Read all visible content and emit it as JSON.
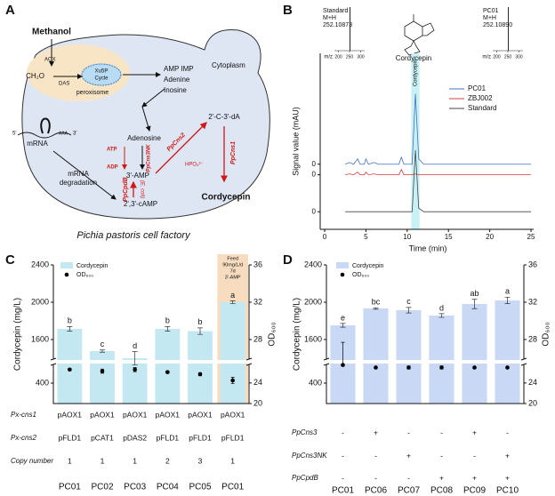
{
  "panel_labels": [
    "A",
    "B",
    "C",
    "D"
  ],
  "diagram": {
    "title": "Pichia pastoris cell factory",
    "labels": [
      "Methanol",
      "AOX",
      "CH₂O",
      "DAS",
      "Xu5P",
      "Cycle",
      "peroxisome",
      "AMP IMP",
      "Adenine",
      "Inosine",
      "Cytoplasm",
      "Adenosine",
      "ATP",
      "ADP",
      "PpCns3NK",
      "PpCns2",
      "HPO₄²⁻",
      "2'-C-3'-dA",
      "PpCns1",
      "3'-AMP",
      "5'",
      "AAA",
      "3'",
      "mRNA",
      "mRNA",
      "degradation",
      "PpCpdB",
      "(E. coli)",
      "2',3'-cAMP",
      "Cordycepin"
    ]
  },
  "chart_data": [
    {
      "type": "line",
      "xlabel": "Time (min)",
      "ylabel": "Signal value (mAU)",
      "xlim": [
        0,
        25
      ],
      "xticks": [
        0,
        5,
        10,
        15,
        20,
        25
      ],
      "highlight": {
        "label": "Cordycepin",
        "x": [
          10.5,
          11.5
        ],
        "color": "#c8f1f6"
      },
      "structure_label": "Cordycepin",
      "legend": "upper right",
      "x": [
        2.5,
        3,
        3.5,
        4,
        4.3,
        4.8,
        5,
        5.3,
        6,
        6.5,
        9,
        9.3,
        9.6,
        10.6,
        11,
        11.4,
        12,
        25
      ],
      "series": [
        {
          "name": "PC01",
          "color": "#3f6fc4",
          "ylim": [
            -37,
            63
          ],
          "yticks": [
            0
          ],
          "values": [
            0,
            1,
            0,
            3,
            0,
            0,
            3,
            0,
            1,
            0,
            0,
            4,
            0,
            0,
            40,
            3,
            0,
            0
          ]
        },
        {
          "name": "ZBJ002",
          "color": "#d43c3c",
          "ylim": [
            -31,
            69
          ],
          "yticks": [
            0
          ],
          "values": [
            0,
            0.5,
            0,
            1.5,
            0,
            0,
            1.5,
            0,
            0.5,
            0,
            0,
            3,
            0,
            0,
            0.5,
            0,
            0,
            0
          ]
        },
        {
          "name": "Standard",
          "color": "#444444",
          "ylim": [
            -10,
            90
          ],
          "yticks": [
            0
          ],
          "values": [
            0,
            0,
            0,
            0,
            0,
            0,
            0,
            0,
            0,
            0,
            0,
            0,
            0,
            0,
            35,
            2,
            0,
            0
          ]
        }
      ]
    },
    {
      "type": "spectrum",
      "title": "Standard",
      "annotation": "M+H",
      "xlabel": "m/z",
      "xlim": [
        190,
        310
      ],
      "xticks": [
        200,
        250,
        300
      ],
      "ylim": [
        0,
        1
      ],
      "x": [
        252.10873
      ],
      "x_labels": [
        "252.10873"
      ],
      "values": [
        1
      ]
    },
    {
      "type": "spectrum",
      "title": "PC01",
      "annotation": "M+H",
      "xlabel": "m/z",
      "xlim": [
        190,
        310
      ],
      "xticks": [
        200,
        250,
        300
      ],
      "ylim": [
        0,
        1
      ],
      "x": [
        252.1089
      ],
      "x_labels": [
        "252.10890"
      ],
      "values": [
        1
      ]
    },
    {
      "type": "bar",
      "ylabel": "Cordycepin (mg/L)",
      "y2label": "OD₆₀₀",
      "ylim": [
        0,
        2400
      ],
      "ybreak": [
        765,
        1390
      ],
      "yticks": [
        400,
        1600,
        2000,
        2400
      ],
      "y2lim": [
        20,
        36
      ],
      "y2break": [
        27.6,
        25.9
      ],
      "y2ticks": [
        20,
        24,
        28,
        32,
        36
      ],
      "categories": [
        "PC01",
        "PC02",
        "PC03",
        "PC04",
        "PC05",
        "PC01"
      ],
      "series": [
        {
          "name": "Cordycepin",
          "color": "#c3e8f1",
          "values": [
            1714,
            1476,
            1400,
            1714,
            1690,
            2000
          ],
          "errors": [
            25,
            12,
            70,
            25,
            35,
            15
          ],
          "letters": [
            "b",
            "c",
            "d",
            "b",
            "b",
            "a"
          ]
        },
        {
          "name": "OD₆₀₀",
          "axis": "y2",
          "color": "#000000",
          "values": [
            26.6,
            26.3,
            26.6,
            26.1,
            25.7,
            24.5
          ],
          "errors": [
            0.2,
            0.4,
            0.4,
            0.2,
            0.3,
            0.6
          ]
        }
      ],
      "annotation": [
        "Feed",
        "90mg/L/d",
        "7d",
        "3'-AMP"
      ],
      "annotation_color": "#f8dcc0",
      "table": {
        "row_labels": [
          "Px-cns1",
          "Px-cns2",
          "Copy number"
        ],
        "rows": [
          [
            "pAOX1",
            "pAOX1",
            "pAOX1",
            "pAOX1",
            "pAOX1",
            "pAOX1"
          ],
          [
            "pFLD1",
            "pCAT1",
            "pDAS2",
            "pFLD1",
            "pFLD1",
            "pFLD1"
          ],
          [
            1,
            1,
            1,
            2,
            3,
            1
          ]
        ]
      }
    },
    {
      "type": "bar",
      "ylabel": "Cordycepin (mg/L)",
      "y2label": "OD₆₀₀",
      "ylim": [
        0,
        2400
      ],
      "ybreak": [
        765,
        1390
      ],
      "yticks": [
        400,
        1600,
        2000,
        2400
      ],
      "y2lim": [
        20,
        36
      ],
      "y2break": [
        27.6,
        25.9
      ],
      "y2ticks": [
        20,
        24,
        28,
        32,
        36
      ],
      "categories": [
        "PC01",
        "PC06",
        "PC07",
        "PC08",
        "PC09",
        "PC10"
      ],
      "series": [
        {
          "name": "Cordycepin",
          "color": "#c9d8f4",
          "values": [
            1752,
            1933,
            1914,
            1857,
            1981,
            2019
          ],
          "errors": [
            20,
            8,
            30,
            20,
            50,
            35
          ],
          "letters": [
            "e",
            "bc",
            "c",
            "d",
            "ab",
            "a"
          ]
        },
        {
          "name": "OD₆₀₀",
          "axis": "y2",
          "color": "#000000",
          "values": [
            27.5,
            27.0,
            27.0,
            27.0,
            27.0,
            27.0
          ],
          "errors": [
            0.2,
            0.2,
            0.3,
            0.3,
            0.2,
            0.2
          ]
        }
      ],
      "table": {
        "row_labels": [
          "PpCns3",
          "PpCns3NK",
          "PpCpdB"
        ],
        "rows": [
          [
            "-",
            "+",
            "-",
            "-",
            "+",
            "-"
          ],
          [
            "-",
            "-",
            "+",
            "-",
            "-",
            "+"
          ],
          [
            "-",
            "-",
            "-",
            "+",
            "+",
            "+"
          ]
        ]
      }
    }
  ]
}
